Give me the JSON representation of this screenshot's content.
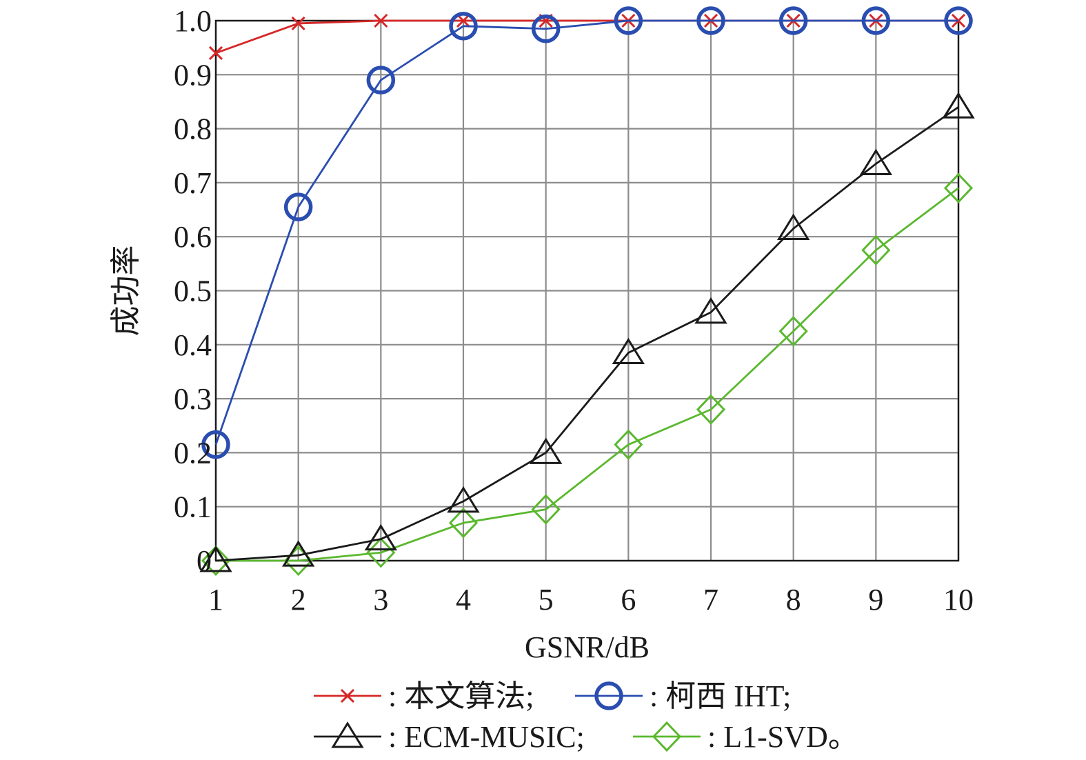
{
  "chart_data": {
    "type": "line",
    "title": "",
    "xlabel": "GSNR/dB",
    "ylabel": "成功率",
    "x": [
      1,
      2,
      3,
      4,
      5,
      6,
      7,
      8,
      9,
      10
    ],
    "xlim": [
      1,
      10
    ],
    "ylim": [
      0,
      1
    ],
    "x_ticks": [
      "1",
      "2",
      "3",
      "4",
      "5",
      "6",
      "7",
      "8",
      "9",
      "10"
    ],
    "y_ticks": [
      "0",
      "0.1",
      "0.2",
      "0.3",
      "0.4",
      "0.5",
      "0.6",
      "0.7",
      "0.8",
      "0.9",
      "1.0"
    ],
    "grid": true,
    "legend_position": "bottom",
    "series": [
      {
        "name": "本文算法",
        "legend_label": ": 本文算法;",
        "marker": "x",
        "color": "#d62728",
        "values": [
          0.94,
          0.995,
          1.0,
          1.0,
          1.0,
          1.0,
          1.0,
          1.0,
          1.0,
          1.0
        ]
      },
      {
        "name": "柯西 IHT",
        "legend_label": ": 柯西 IHT;",
        "marker": "circle",
        "color": "#2a4db0",
        "values": [
          0.215,
          0.655,
          0.89,
          0.99,
          0.985,
          1.0,
          1.0,
          1.0,
          1.0,
          1.0
        ]
      },
      {
        "name": "ECM-MUSIC",
        "legend_label": ": ECM-MUSIC;",
        "marker": "triangle",
        "color": "#1a1a1a",
        "values": [
          0.0,
          0.01,
          0.04,
          0.11,
          0.2,
          0.385,
          0.46,
          0.615,
          0.735,
          0.84
        ]
      },
      {
        "name": "L1-SVD",
        "legend_label": ": L1-SVD。",
        "marker": "diamond",
        "color": "#5ab82e",
        "values": [
          0.0,
          0.0,
          0.015,
          0.07,
          0.095,
          0.215,
          0.28,
          0.425,
          0.575,
          0.69
        ]
      }
    ]
  }
}
